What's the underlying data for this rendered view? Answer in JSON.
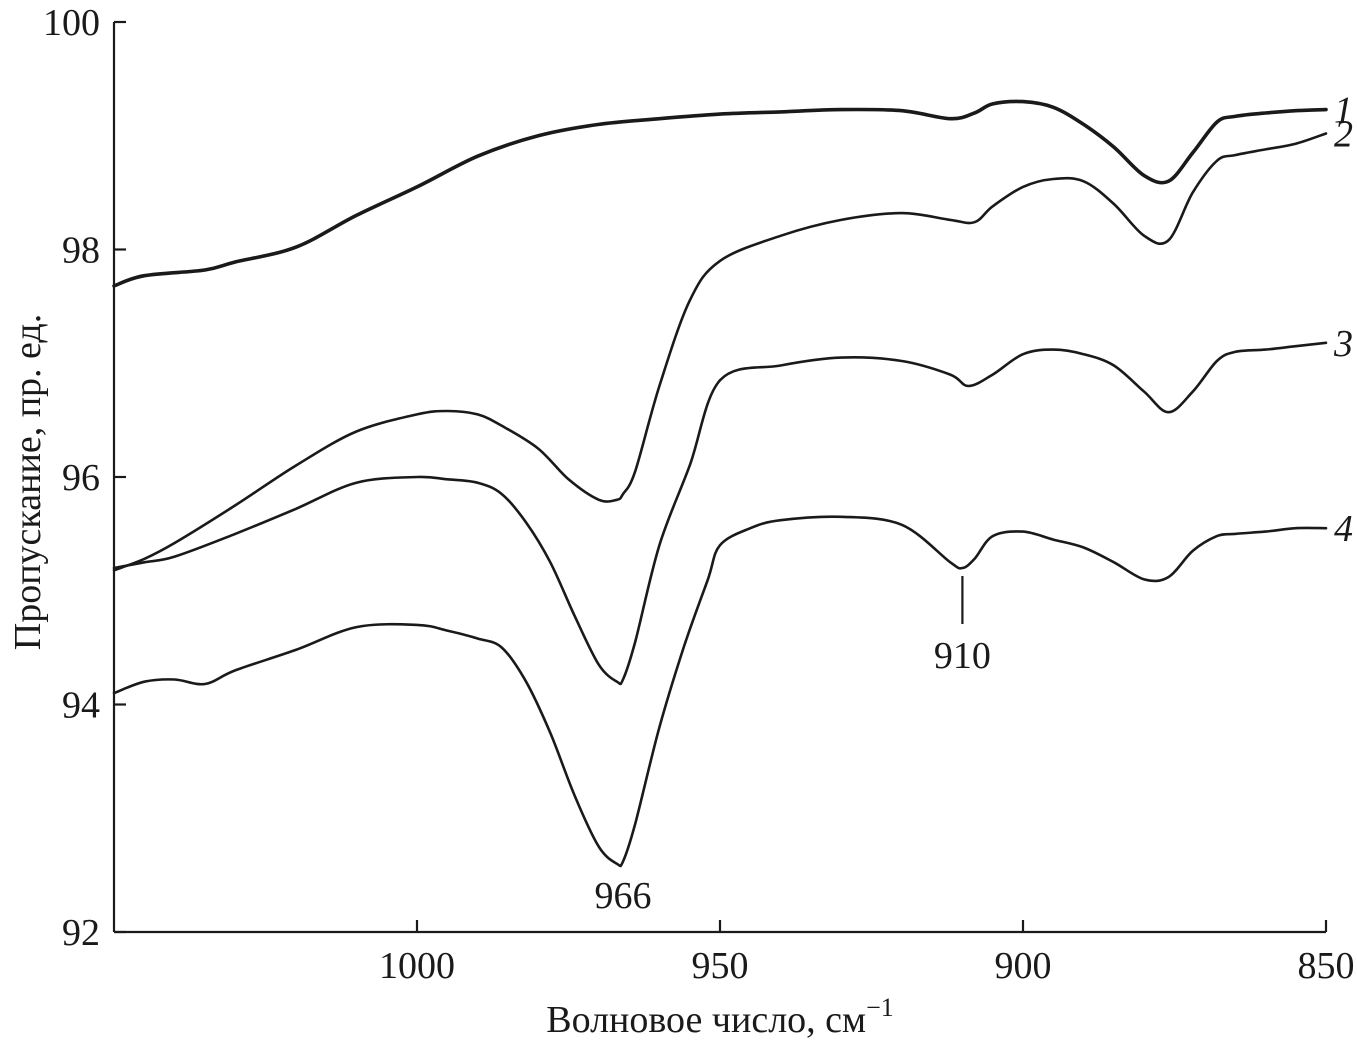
{
  "chart_data": {
    "type": "line",
    "xlabel": "Волновое число, см",
    "xlabel_sup": "−1",
    "ylabel": "Пропускание, пр. ед.",
    "xlim": [
      1050,
      850
    ],
    "ylim": [
      92,
      100
    ],
    "x_reversed": true,
    "grid": false,
    "x_ticks": [
      1000,
      950,
      900,
      850
    ],
    "x_tick_labels": [
      "1000",
      "950",
      "900",
      "850"
    ],
    "y_ticks": [
      92,
      94,
      96,
      98,
      100
    ],
    "y_tick_labels": [
      "92",
      "94",
      "96",
      "98",
      "100"
    ],
    "series": [
      {
        "name": "1",
        "x": [
          1050,
          1045,
          1035,
          1030,
          1020,
          1010,
          1000,
          990,
          980,
          970,
          960,
          950,
          940,
          930,
          920,
          912,
          908,
          905,
          900,
          895,
          890,
          885,
          880,
          876,
          872,
          868,
          865,
          860,
          855,
          850
        ],
        "y": [
          97.68,
          97.77,
          97.82,
          97.89,
          98.02,
          98.3,
          98.55,
          98.82,
          99.0,
          99.1,
          99.15,
          99.19,
          99.21,
          99.23,
          99.22,
          99.15,
          99.2,
          99.28,
          99.3,
          99.25,
          99.1,
          98.9,
          98.65,
          98.6,
          98.85,
          99.12,
          99.17,
          99.2,
          99.22,
          99.23
        ],
        "label_text": "1",
        "stroke_width": 3.6
      },
      {
        "name": "2",
        "x": [
          1050,
          1045,
          1040,
          1030,
          1020,
          1010,
          1000,
          995,
          990,
          986,
          980,
          975,
          970,
          967,
          966,
          964,
          960,
          955,
          950,
          940,
          930,
          920,
          912,
          908,
          905,
          900,
          895,
          890,
          885,
          880,
          876,
          872,
          868,
          865,
          860,
          855,
          850
        ],
        "y": [
          95.18,
          95.28,
          95.42,
          95.75,
          96.1,
          96.4,
          96.55,
          96.58,
          96.55,
          96.45,
          96.25,
          95.98,
          95.8,
          95.8,
          95.85,
          96.05,
          96.8,
          97.55,
          97.9,
          98.12,
          98.26,
          98.32,
          98.26,
          98.24,
          98.38,
          98.55,
          98.62,
          98.6,
          98.4,
          98.12,
          98.08,
          98.5,
          98.78,
          98.83,
          98.88,
          98.93,
          99.02
        ],
        "label_text": "2",
        "stroke_width": 2.6
      },
      {
        "name": "3",
        "x": [
          1050,
          1045,
          1040,
          1030,
          1020,
          1010,
          1000,
          995,
          990,
          986,
          982,
          978,
          974,
          970,
          967,
          966,
          964,
          960,
          955,
          950,
          940,
          930,
          920,
          912,
          909,
          905,
          900,
          895,
          890,
          885,
          880,
          876,
          872,
          868,
          865,
          860,
          855,
          850
        ],
        "y": [
          95.2,
          95.25,
          95.3,
          95.5,
          95.72,
          95.95,
          96.0,
          95.98,
          95.95,
          95.85,
          95.6,
          95.25,
          94.78,
          94.35,
          94.2,
          94.22,
          94.55,
          95.4,
          96.1,
          96.85,
          96.98,
          97.05,
          97.02,
          96.9,
          96.8,
          96.9,
          97.08,
          97.12,
          97.08,
          96.98,
          96.75,
          96.57,
          96.75,
          97.02,
          97.1,
          97.12,
          97.15,
          97.18
        ],
        "label_text": "3",
        "stroke_width": 2.6
      },
      {
        "name": "4",
        "x": [
          1050,
          1045,
          1040,
          1035,
          1030,
          1020,
          1010,
          1000,
          995,
          990,
          986,
          982,
          978,
          974,
          970,
          967,
          966,
          964,
          960,
          956,
          952,
          950,
          945,
          940,
          930,
          920,
          912,
          910,
          908,
          905,
          900,
          895,
          890,
          885,
          880,
          876,
          872,
          868,
          865,
          860,
          855,
          850
        ],
        "y": [
          94.1,
          94.2,
          94.22,
          94.18,
          94.3,
          94.48,
          94.68,
          94.7,
          94.65,
          94.58,
          94.5,
          94.2,
          93.75,
          93.2,
          92.75,
          92.6,
          92.62,
          92.95,
          93.8,
          94.5,
          95.1,
          95.4,
          95.55,
          95.62,
          95.65,
          95.58,
          95.25,
          95.2,
          95.28,
          95.48,
          95.52,
          95.45,
          95.38,
          95.25,
          95.1,
          95.12,
          95.35,
          95.48,
          95.5,
          95.52,
          95.55,
          95.55
        ],
        "label_text": "4",
        "stroke_width": 2.6
      }
    ],
    "annotations": [
      {
        "text": "966",
        "x": 966,
        "y": 92.6,
        "with_line": false
      },
      {
        "text": "910",
        "x": 910,
        "y": 95.2,
        "with_line": true
      }
    ]
  }
}
